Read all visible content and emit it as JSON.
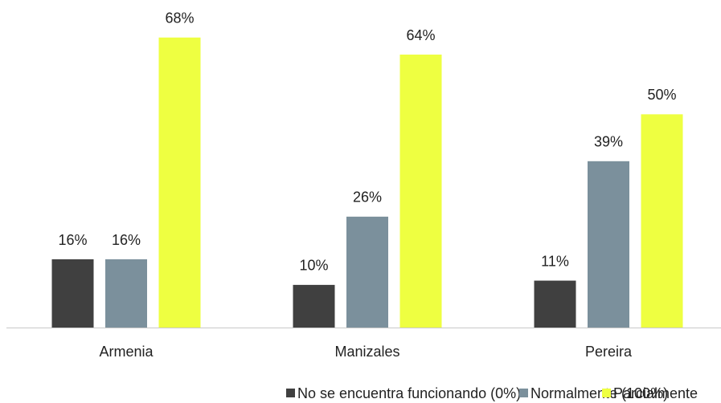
{
  "chart_data": {
    "type": "bar",
    "categories": [
      "Armenia",
      "Manizales",
      "Pereira"
    ],
    "series": [
      {
        "name": "No se encuentra funcionando (0%)",
        "color": "#404040",
        "values": [
          16,
          10,
          11
        ],
        "value_labels": [
          "16%",
          "10%",
          "11%"
        ]
      },
      {
        "name": "Normalmente (100%)",
        "color": "#7b909c",
        "values": [
          16,
          26,
          39
        ],
        "value_labels": [
          "16%",
          "26%",
          "39%"
        ]
      },
      {
        "name": "Parcialmente",
        "color": "#eeff41",
        "values": [
          68,
          64,
          50
        ],
        "value_labels": [
          "68%",
          "64%",
          "50%"
        ]
      }
    ],
    "ylim": [
      0,
      76.8
    ],
    "legend": "bottom"
  }
}
